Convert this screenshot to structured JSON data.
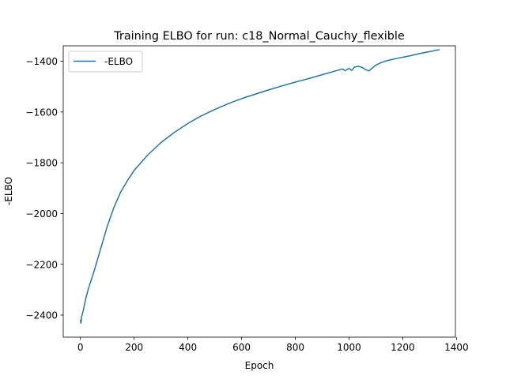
{
  "chart_data": {
    "type": "line",
    "title": "Training ELBO for run: c18_Normal_Cauchy_flexible",
    "xlabel": "Epoch",
    "ylabel": "-ELBO",
    "xlim": [
      -64,
      1396
    ],
    "ylim": [
      -2487,
      -1339
    ],
    "xticks": [
      0,
      200,
      400,
      600,
      800,
      1000,
      1200,
      1400
    ],
    "yticks": [
      -2400,
      -2200,
      -2000,
      -1800,
      -1600,
      -1400
    ],
    "xtick_labels": [
      "0",
      "200",
      "400",
      "600",
      "800",
      "1000",
      "1200",
      "1400"
    ],
    "ytick_labels": [
      "−2400",
      "−2200",
      "−2000",
      "−1800",
      "−1600",
      "−1400"
    ],
    "grid": false,
    "legend_position": "upper-left",
    "colors": {
      "series": "#1f77b4"
    },
    "series": [
      {
        "name": "-ELBO",
        "x": [
          0,
          2,
          5,
          10,
          20,
          30,
          50,
          75,
          100,
          125,
          150,
          175,
          200,
          250,
          300,
          350,
          400,
          450,
          500,
          550,
          600,
          650,
          700,
          750,
          800,
          850,
          900,
          950,
          975,
          985,
          1000,
          1010,
          1020,
          1035,
          1050,
          1060,
          1075,
          1085,
          1100,
          1120,
          1140,
          1160,
          1180,
          1200,
          1230,
          1260,
          1290,
          1310,
          1320,
          1335
        ],
        "y": [
          -2420,
          -2432,
          -2405,
          -2385,
          -2335,
          -2295,
          -2230,
          -2140,
          -2050,
          -1975,
          -1915,
          -1870,
          -1830,
          -1770,
          -1720,
          -1680,
          -1645,
          -1615,
          -1590,
          -1567,
          -1547,
          -1530,
          -1513,
          -1497,
          -1482,
          -1468,
          -1453,
          -1438,
          -1430,
          -1437,
          -1428,
          -1436,
          -1423,
          -1420,
          -1425,
          -1432,
          -1438,
          -1428,
          -1415,
          -1405,
          -1398,
          -1393,
          -1388,
          -1384,
          -1378,
          -1370,
          -1364,
          -1360,
          -1357,
          -1355
        ]
      }
    ]
  }
}
